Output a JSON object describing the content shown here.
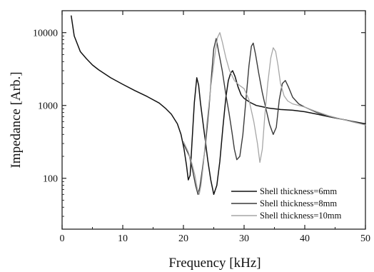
{
  "chart_data": {
    "type": "line",
    "xlabel": "Frequency [kHz]",
    "ylabel": "Impedance [Arb.]",
    "xlim": [
      0,
      50
    ],
    "ylim": [
      20,
      20000
    ],
    "yscale": "log",
    "grid": false,
    "legend_position": "bottom-right",
    "x_ticks": [
      0,
      10,
      20,
      30,
      40,
      50
    ],
    "x_tick_labels": [
      "0",
      "10",
      "20",
      "30",
      "40",
      "50"
    ],
    "y_ticks": [
      100,
      1000,
      10000
    ],
    "y_tick_labels": [
      "100",
      "1000",
      "10000"
    ],
    "series": [
      {
        "name": "Shell thickness=6mm",
        "color": "#111111",
        "x": [
          1.5,
          2,
          3,
          4,
          5,
          6,
          8,
          10,
          12,
          14,
          16,
          17,
          18,
          19,
          19.6,
          20.1,
          20.5,
          20.8,
          21.1,
          21.4,
          21.8,
          22.2,
          22.5,
          22.8,
          23.2,
          23.6,
          24,
          24.5,
          25,
          25.5,
          26,
          26.5,
          27,
          27.4,
          27.8,
          28.1,
          28.5,
          29,
          29.5,
          30,
          31,
          32,
          33,
          34,
          35,
          36,
          37,
          38,
          40,
          42,
          44,
          46,
          48,
          50
        ],
        "values": [
          17000,
          9000,
          5500,
          4400,
          3600,
          3100,
          2400,
          1950,
          1600,
          1330,
          1080,
          920,
          760,
          560,
          400,
          250,
          150,
          95,
          110,
          300,
          1100,
          2400,
          1900,
          1100,
          600,
          330,
          180,
          95,
          60,
          80,
          170,
          500,
          1300,
          2200,
          2800,
          3000,
          2500,
          1800,
          1400,
          1250,
          1100,
          1000,
          960,
          920,
          900,
          880,
          870,
          860,
          820,
          760,
          700,
          650,
          600,
          560
        ]
      },
      {
        "name": "Shell thickness=8mm",
        "color": "#3a3a3a",
        "x": [
          20,
          21,
          21.5,
          22,
          22.4,
          22.7,
          23.1,
          23.6,
          24.2,
          24.7,
          25,
          25.4,
          25.8,
          26.4,
          27,
          27.5,
          28,
          28.4,
          28.8,
          29.3,
          29.8,
          30.3,
          30.8,
          31.2,
          31.5,
          31.9,
          32.4,
          33,
          33.6,
          34.2,
          34.8,
          35.3,
          35.8,
          36.3,
          36.8,
          37.3,
          38,
          39,
          40,
          42,
          44,
          46,
          48,
          50
        ],
        "values": [
          300,
          200,
          130,
          80,
          60,
          75,
          130,
          270,
          900,
          3000,
          6000,
          8300,
          5500,
          3000,
          1400,
          800,
          430,
          250,
          180,
          200,
          400,
          1200,
          3500,
          6500,
          7200,
          5000,
          2800,
          1500,
          900,
          550,
          400,
          500,
          1200,
          2000,
          2200,
          1800,
          1300,
          1050,
          950,
          800,
          700,
          650,
          600,
          540
        ]
      },
      {
        "name": "Shell thickness=10mm",
        "color": "#a6a6a6",
        "x": [
          20,
          20.8,
          21.4,
          21.9,
          22.3,
          22.6,
          22.9,
          23.3,
          23.8,
          24.5,
          25.2,
          25.6,
          26,
          26.4,
          27,
          27.6,
          28.4,
          29.2,
          30,
          30.8,
          31.6,
          32.2,
          32.6,
          33,
          33.4,
          33.9,
          34.4,
          34.8,
          35.2,
          35.6,
          36,
          36.6,
          37.2,
          38,
          39,
          40,
          41,
          42,
          44,
          46,
          48,
          50
        ],
        "values": [
          320,
          230,
          160,
          110,
          70,
          60,
          80,
          160,
          500,
          1800,
          5000,
          8500,
          10000,
          7500,
          4500,
          3000,
          2200,
          1900,
          1700,
          1200,
          600,
          300,
          165,
          250,
          700,
          2000,
          4500,
          6200,
          5500,
          3500,
          2000,
          1350,
          1150,
          1050,
          1000,
          950,
          880,
          820,
          720,
          650,
          590,
          540
        ]
      }
    ]
  }
}
